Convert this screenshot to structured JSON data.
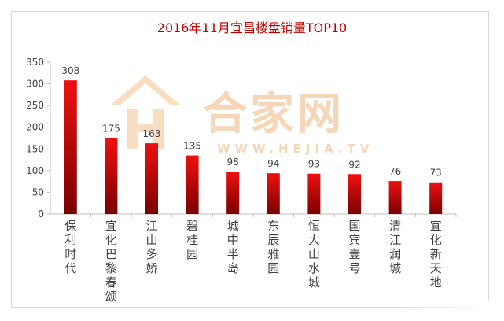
{
  "chart_data": {
    "type": "bar",
    "title": "2016年11月宜昌楼盘销量TOP10",
    "categories": [
      "保利时代",
      "宜化巴黎春颂",
      "江山多娇",
      "碧桂园",
      "城中半岛",
      "东辰雅园",
      "恒大山水城",
      "国宾壹号",
      "清江润城",
      "宜化新天地"
    ],
    "values": [
      308,
      175,
      163,
      135,
      98,
      94,
      93,
      92,
      76,
      73
    ],
    "ylim": [
      0,
      350
    ],
    "yticks": [
      0,
      50,
      100,
      150,
      200,
      250,
      300,
      350
    ],
    "grid": false,
    "xlabel": "",
    "ylabel": ""
  },
  "watermark": {
    "brand": "合家网",
    "url": "WWW.HEJIA.TV"
  },
  "colors": {
    "title": "#c00000",
    "bar_top": "#ee1111",
    "bar_bottom": "#7a0000",
    "axis": "#bfbfbf",
    "label": "#404040",
    "watermark": "#f2c9a0"
  }
}
